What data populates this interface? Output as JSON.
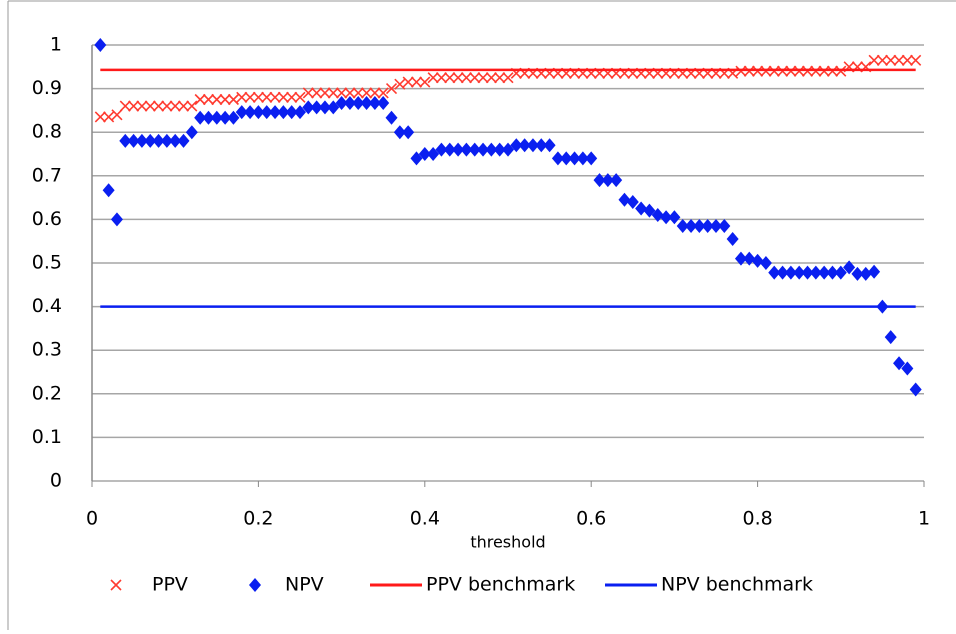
{
  "chart_data": {
    "type": "scatter",
    "x_label": "threshold",
    "xlim": [
      0,
      1
    ],
    "xticks": [
      0,
      0.2,
      0.4,
      0.6,
      0.8,
      1
    ],
    "ylim": [
      0,
      1
    ],
    "yticks": [
      0,
      0.1,
      0.2,
      0.3,
      0.4,
      0.5,
      0.6,
      0.7,
      0.8,
      0.9,
      1
    ],
    "grid": true,
    "legend": "bottom",
    "x": [
      0.01,
      0.02,
      0.03,
      0.04,
      0.05,
      0.06,
      0.07,
      0.08,
      0.09,
      0.1,
      0.11,
      0.12,
      0.13,
      0.14,
      0.15,
      0.16,
      0.17,
      0.18,
      0.19,
      0.2,
      0.21,
      0.22,
      0.23,
      0.24,
      0.25,
      0.26,
      0.27,
      0.28,
      0.29,
      0.3,
      0.31,
      0.32,
      0.33,
      0.34,
      0.35,
      0.36,
      0.37,
      0.38,
      0.39,
      0.4,
      0.41,
      0.42,
      0.43,
      0.44,
      0.45,
      0.46,
      0.47,
      0.48,
      0.49,
      0.5,
      0.51,
      0.52,
      0.53,
      0.54,
      0.55,
      0.56,
      0.57,
      0.58,
      0.59,
      0.6,
      0.61,
      0.62,
      0.63,
      0.64,
      0.65,
      0.66,
      0.67,
      0.68,
      0.69,
      0.7,
      0.71,
      0.72,
      0.73,
      0.74,
      0.75,
      0.76,
      0.77,
      0.78,
      0.79,
      0.8,
      0.81,
      0.82,
      0.83,
      0.84,
      0.85,
      0.86,
      0.87,
      0.88,
      0.89,
      0.9,
      0.91,
      0.92,
      0.93,
      0.94,
      0.95,
      0.96,
      0.97,
      0.98,
      0.99
    ],
    "series": [
      {
        "name": "PPV",
        "color": "#ff3b30",
        "marker": "x",
        "values": [
          0.835,
          0.835,
          0.84,
          0.86,
          0.86,
          0.86,
          0.86,
          0.86,
          0.86,
          0.86,
          0.86,
          0.86,
          0.875,
          0.875,
          0.875,
          0.875,
          0.875,
          0.88,
          0.88,
          0.88,
          0.88,
          0.88,
          0.88,
          0.88,
          0.88,
          0.89,
          0.89,
          0.89,
          0.89,
          0.89,
          0.89,
          0.89,
          0.89,
          0.89,
          0.89,
          0.9,
          0.91,
          0.915,
          0.915,
          0.915,
          0.925,
          0.925,
          0.925,
          0.925,
          0.925,
          0.925,
          0.925,
          0.925,
          0.925,
          0.925,
          0.935,
          0.935,
          0.935,
          0.935,
          0.935,
          0.935,
          0.935,
          0.935,
          0.935,
          0.935,
          0.935,
          0.935,
          0.935,
          0.935,
          0.935,
          0.935,
          0.935,
          0.935,
          0.935,
          0.935,
          0.935,
          0.935,
          0.935,
          0.935,
          0.935,
          0.935,
          0.935,
          0.94,
          0.94,
          0.94,
          0.94,
          0.94,
          0.94,
          0.94,
          0.94,
          0.94,
          0.94,
          0.94,
          0.94,
          0.94,
          0.95,
          0.95,
          0.95,
          0.965,
          0.965,
          0.965,
          0.965,
          0.965,
          0.965
        ]
      },
      {
        "name": "NPV",
        "color": "#0a1ff0",
        "marker": "diamond",
        "values": [
          1,
          0.667,
          0.6,
          0.78,
          0.78,
          0.78,
          0.78,
          0.78,
          0.78,
          0.78,
          0.78,
          0.8,
          0.833,
          0.833,
          0.833,
          0.833,
          0.833,
          0.846,
          0.846,
          0.846,
          0.846,
          0.846,
          0.846,
          0.846,
          0.846,
          0.857,
          0.857,
          0.857,
          0.857,
          0.867,
          0.867,
          0.867,
          0.867,
          0.867,
          0.867,
          0.833,
          0.8,
          0.8,
          0.74,
          0.75,
          0.75,
          0.76,
          0.76,
          0.76,
          0.76,
          0.76,
          0.76,
          0.76,
          0.76,
          0.76,
          0.77,
          0.77,
          0.77,
          0.77,
          0.77,
          0.74,
          0.74,
          0.74,
          0.74,
          0.74,
          0.69,
          0.69,
          0.69,
          0.645,
          0.64,
          0.625,
          0.62,
          0.61,
          0.605,
          0.605,
          0.585,
          0.585,
          0.585,
          0.585,
          0.585,
          0.585,
          0.555,
          0.51,
          0.51,
          0.505,
          0.5,
          0.478,
          0.478,
          0.478,
          0.478,
          0.478,
          0.478,
          0.478,
          0.478,
          0.478,
          0.49,
          0.475,
          0.475,
          0.48,
          0.4,
          0.33,
          0.27,
          0.258,
          0.21
        ]
      },
      {
        "name": "PPV benchmark",
        "color": "#ff1a1a",
        "marker": "line",
        "x": [
          0.01,
          0.99
        ],
        "values": [
          0.943,
          0.943
        ]
      },
      {
        "name": "NPV benchmark",
        "color": "#0a1ff0",
        "marker": "line",
        "x": [
          0.01,
          0.99
        ],
        "values": [
          0.4,
          0.4
        ]
      }
    ]
  }
}
